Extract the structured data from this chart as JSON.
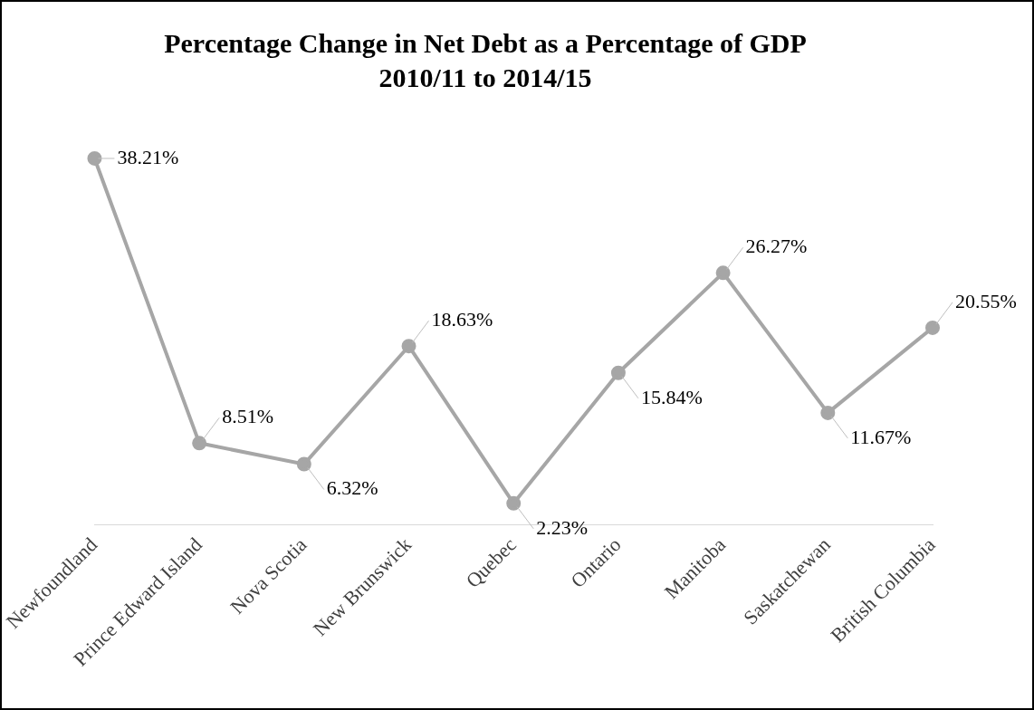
{
  "chart_data": {
    "type": "line",
    "title": "Percentage Change in Net Debt as a Percentage of GDP",
    "subtitle": "2010/11 to 2014/15",
    "categories": [
      "Newfoundland",
      "Prince Edward Island",
      "Nova Scotia",
      "New Brunswick",
      "Quebec",
      "Ontario",
      "Manitoba",
      "Saskatchewan",
      "British Columbia"
    ],
    "values": [
      38.21,
      8.51,
      6.32,
      18.63,
      2.23,
      15.84,
      26.27,
      11.67,
      20.55
    ],
    "value_labels": [
      "38.21%",
      "8.51%",
      "6.32%",
      "18.63%",
      "2.23%",
      "15.84%",
      "26.27%",
      "11.67%",
      "20.55%"
    ],
    "color": "#a6a6a6",
    "marker": "circle",
    "line_style": "solid",
    "grid": false,
    "legend": false,
    "tick_labels": "x"
  }
}
